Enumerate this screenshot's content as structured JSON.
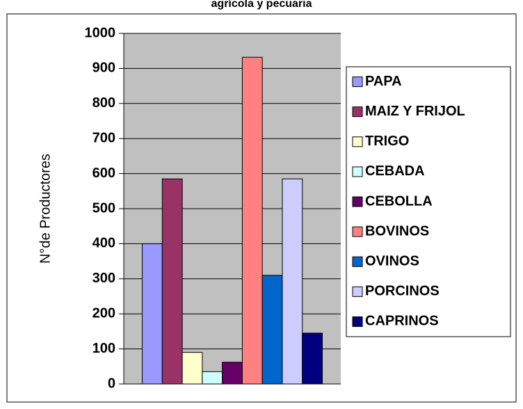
{
  "chart_data": {
    "type": "bar",
    "title": "agrícola y pecuaria",
    "ylabel": "N°de Productores",
    "categories": [
      null
    ],
    "series": [
      {
        "name": "PAPA",
        "color": "#9999ff",
        "values": [
          400
        ]
      },
      {
        "name": "MAIZ Y FRIJOL",
        "color": "#993366",
        "values": [
          585
        ]
      },
      {
        "name": "TRIGO",
        "color": "#ffffcc",
        "values": [
          90
        ]
      },
      {
        "name": "CEBADA",
        "color": "#ccffff",
        "values": [
          35
        ]
      },
      {
        "name": "CEBOLLA",
        "color": "#660066",
        "values": [
          62
        ]
      },
      {
        "name": "BOVINOS",
        "color": "#ff8080",
        "values": [
          932
        ]
      },
      {
        "name": "OVINOS",
        "color": "#0066cc",
        "values": [
          310
        ]
      },
      {
        "name": "PORCINOS",
        "color": "#ccccff",
        "values": [
          585
        ]
      },
      {
        "name": "CAPRINOS",
        "color": "#000080",
        "values": [
          145
        ]
      }
    ],
    "ylim": [
      0,
      1000
    ],
    "yticks": [
      0,
      100,
      200,
      300,
      400,
      500,
      600,
      700,
      800,
      900,
      1000
    ],
    "grid": true,
    "legend": "right"
  }
}
